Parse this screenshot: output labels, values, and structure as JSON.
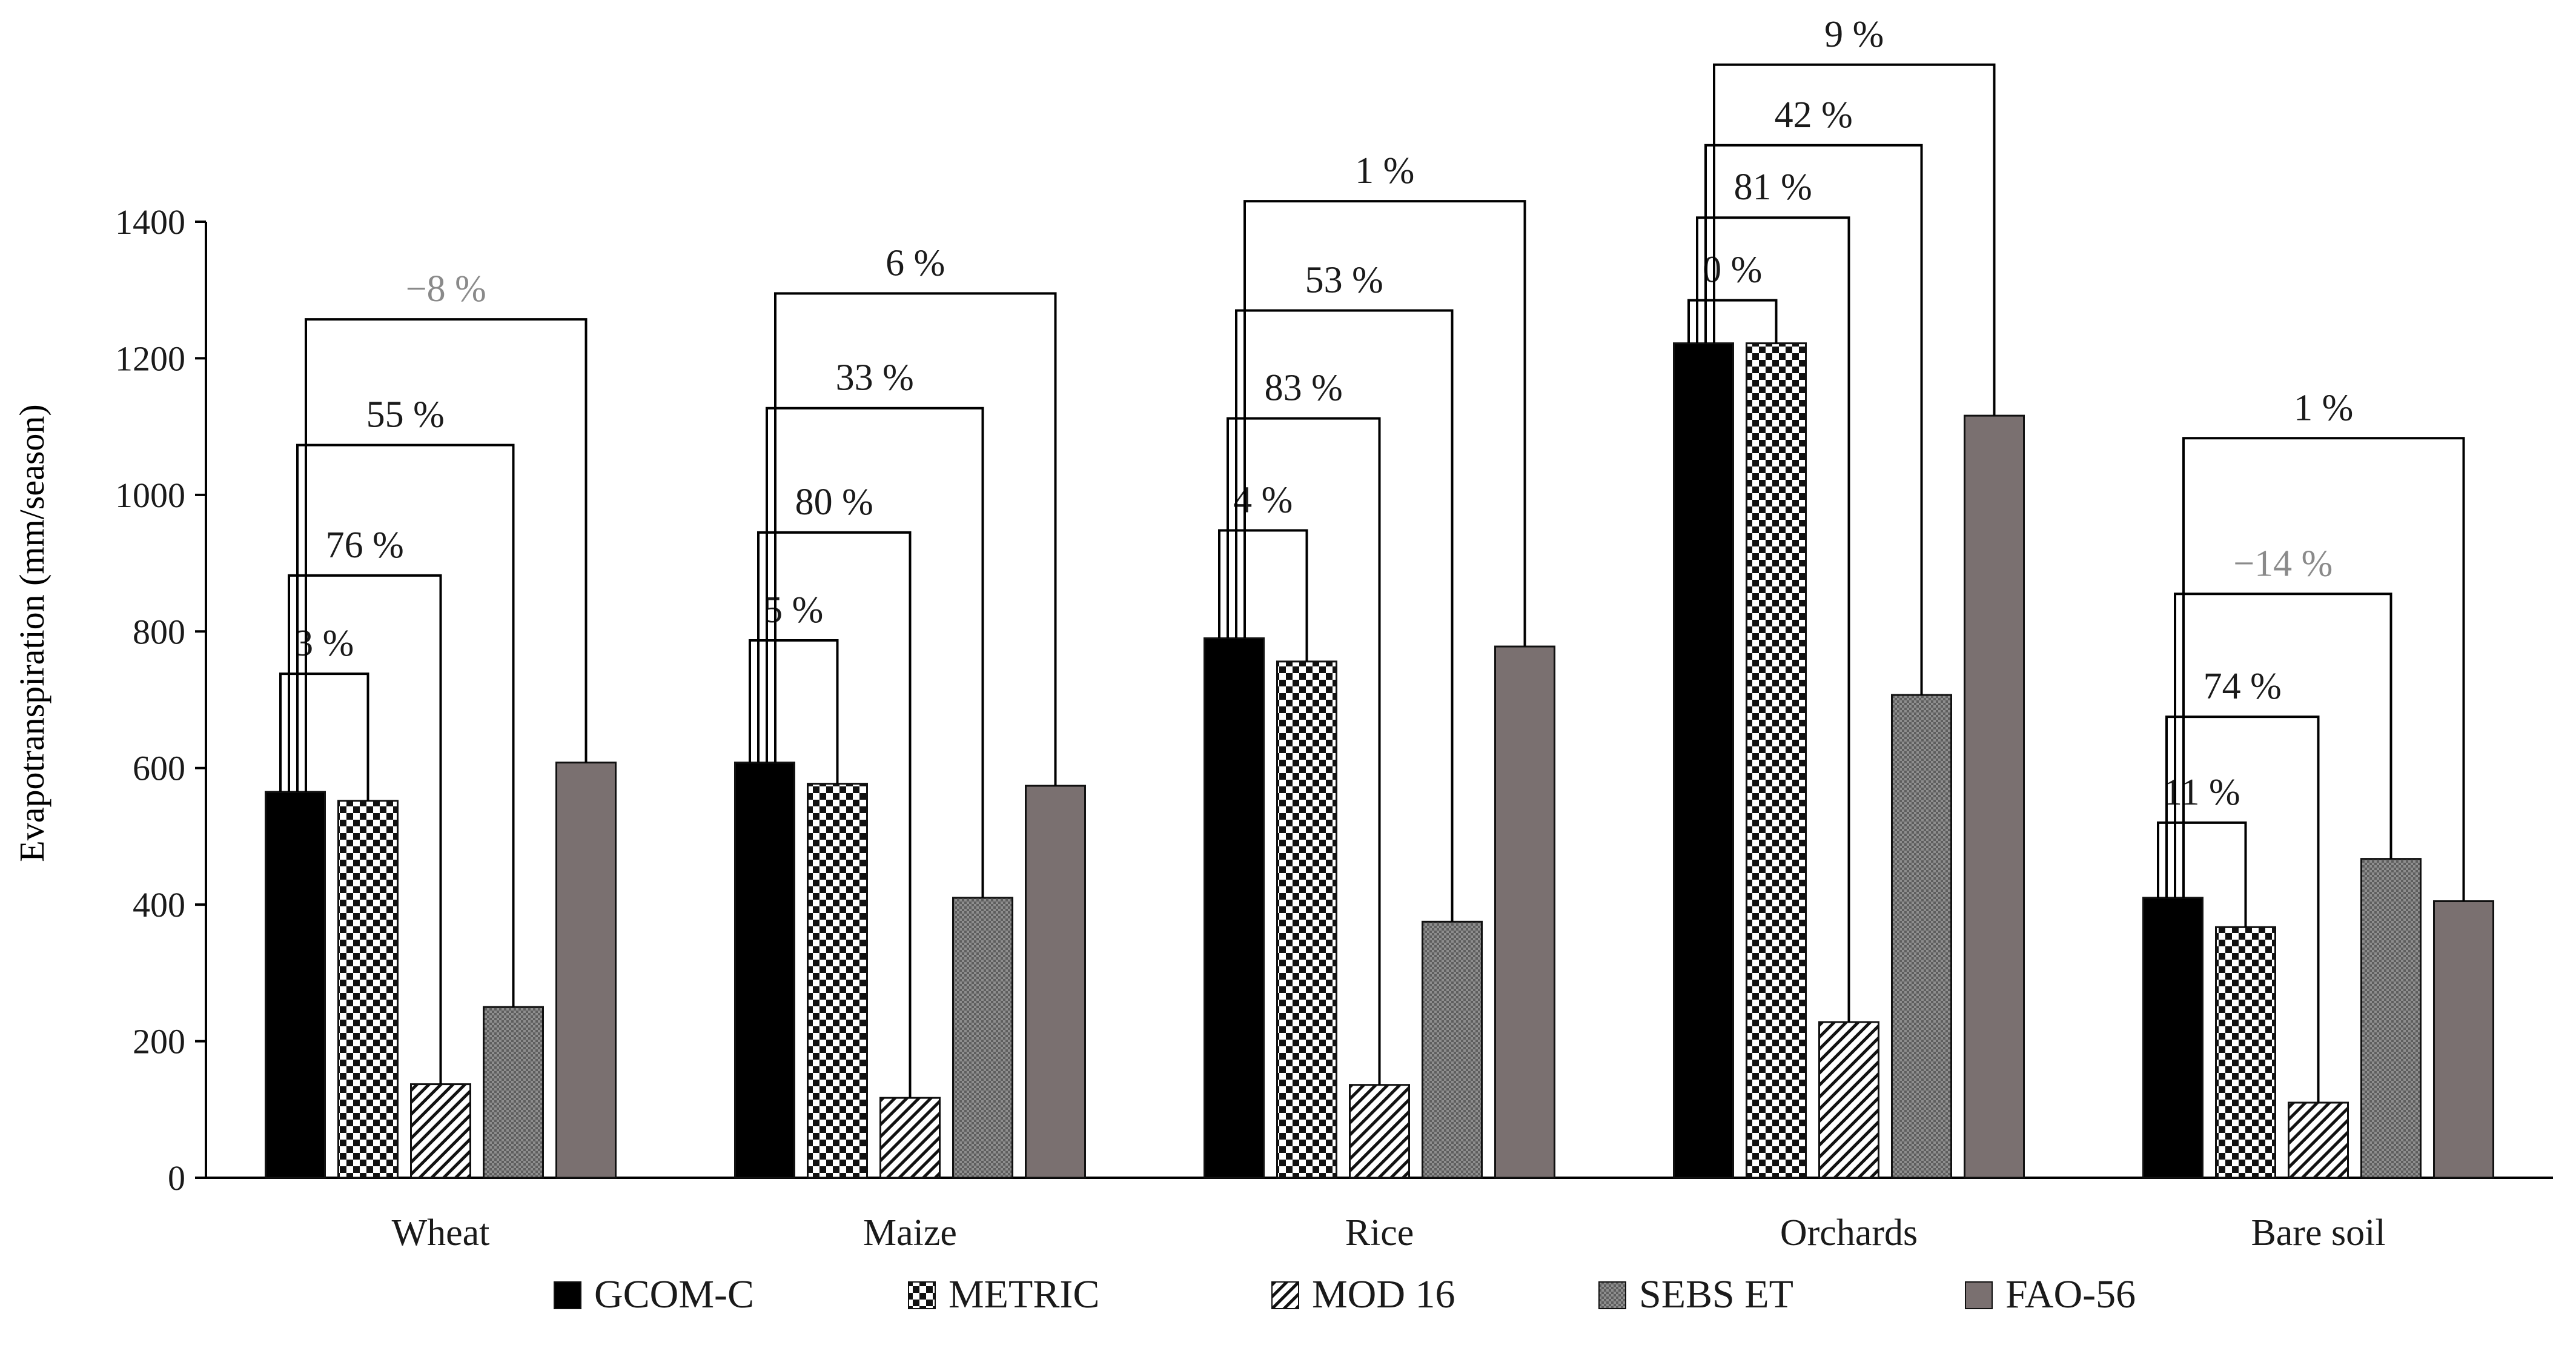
{
  "chart_data": {
    "type": "bar",
    "title": "",
    "xlabel": "",
    "ylabel": "Evapotranspiration  (mm/season)",
    "ylim": [
      0,
      1400
    ],
    "yticks": [
      0,
      200,
      400,
      600,
      800,
      1000,
      1200,
      1400
    ],
    "grid": false,
    "legend_position": "bottom",
    "categories": [
      "Wheat",
      "Maize",
      "Rice",
      "Orchards",
      "Bare soil"
    ],
    "series": [
      {
        "name": "GCOM-C",
        "values": [
          565,
          608,
          790,
          1222,
          410
        ],
        "color": "#000000",
        "pattern": "solid-black"
      },
      {
        "name": "METRIC",
        "values": [
          552,
          577,
          756,
          1222,
          367
        ],
        "color": "#ffffff",
        "pattern": "checker"
      },
      {
        "name": "MOD 16",
        "values": [
          137,
          117,
          136,
          228,
          110
        ],
        "color": "#ffffff",
        "pattern": "diagonal"
      },
      {
        "name": "SEBS ET",
        "values": [
          250,
          410,
          375,
          707,
          467
        ],
        "color": "#9a9a9a",
        "pattern": "dots"
      },
      {
        "name": "FAO-56",
        "values": [
          608,
          574,
          778,
          1116,
          405
        ],
        "color": "#7a7070",
        "pattern": "solid-gray"
      }
    ],
    "annotations": [
      {
        "category": "Wheat",
        "from": "GCOM-C",
        "to": "METRIC",
        "label": "3 %",
        "level": 738
      },
      {
        "category": "Wheat",
        "from": "GCOM-C",
        "to": "MOD 16",
        "label": "76 %",
        "level": 882
      },
      {
        "category": "Wheat",
        "from": "GCOM-C",
        "to": "SEBS ET",
        "label": "55 %",
        "level": 1073
      },
      {
        "category": "Wheat",
        "from": "GCOM-C",
        "to": "FAO-56",
        "label": "−8 %",
        "level": 1257,
        "muted": true
      },
      {
        "category": "Maize",
        "from": "GCOM-C",
        "to": "METRIC",
        "label": "5 %",
        "level": 787
      },
      {
        "category": "Maize",
        "from": "GCOM-C",
        "to": "MOD 16",
        "label": "80 %",
        "level": 945
      },
      {
        "category": "Maize",
        "from": "GCOM-C",
        "to": "SEBS ET",
        "label": "33 %",
        "level": 1127
      },
      {
        "category": "Maize",
        "from": "GCOM-C",
        "to": "FAO-56",
        "label": "6 %",
        "level": 1295
      },
      {
        "category": "Rice",
        "from": "GCOM-C",
        "to": "METRIC",
        "label": "4 %",
        "level": 948
      },
      {
        "category": "Rice",
        "from": "GCOM-C",
        "to": "MOD 16",
        "label": "83 %",
        "level": 1112
      },
      {
        "category": "Rice",
        "from": "GCOM-C",
        "to": "SEBS ET",
        "label": "53 %",
        "level": 1270
      },
      {
        "category": "Rice",
        "from": "GCOM-C",
        "to": "FAO-56",
        "label": "1 %",
        "level": 1430
      },
      {
        "category": "Orchards",
        "from": "GCOM-C",
        "to": "METRIC",
        "label": "0 %",
        "level": 1285
      },
      {
        "category": "Orchards",
        "from": "GCOM-C",
        "to": "MOD 16",
        "label": "81 %",
        "level": 1406
      },
      {
        "category": "Orchards",
        "from": "GCOM-C",
        "to": "SEBS ET",
        "label": "42 %",
        "level": 1512
      },
      {
        "category": "Orchards",
        "from": "GCOM-C",
        "to": "FAO-56",
        "label": "9 %",
        "level": 1630
      },
      {
        "category": "Bare soil",
        "from": "GCOM-C",
        "to": "METRIC",
        "label": "11 %",
        "level": 520
      },
      {
        "category": "Bare soil",
        "from": "GCOM-C",
        "to": "MOD 16",
        "label": "74 %",
        "level": 675
      },
      {
        "category": "Bare soil",
        "from": "GCOM-C",
        "to": "SEBS ET",
        "label": "−14 %",
        "level": 855,
        "muted": true
      },
      {
        "category": "Bare soil",
        "from": "GCOM-C",
        "to": "FAO-56",
        "label": "1 %",
        "level": 1083
      }
    ]
  },
  "colors": {
    "axis": "#000000",
    "text": "#1a1a1a",
    "muted_text": "#8a8a8a",
    "bracket": "#000000"
  }
}
